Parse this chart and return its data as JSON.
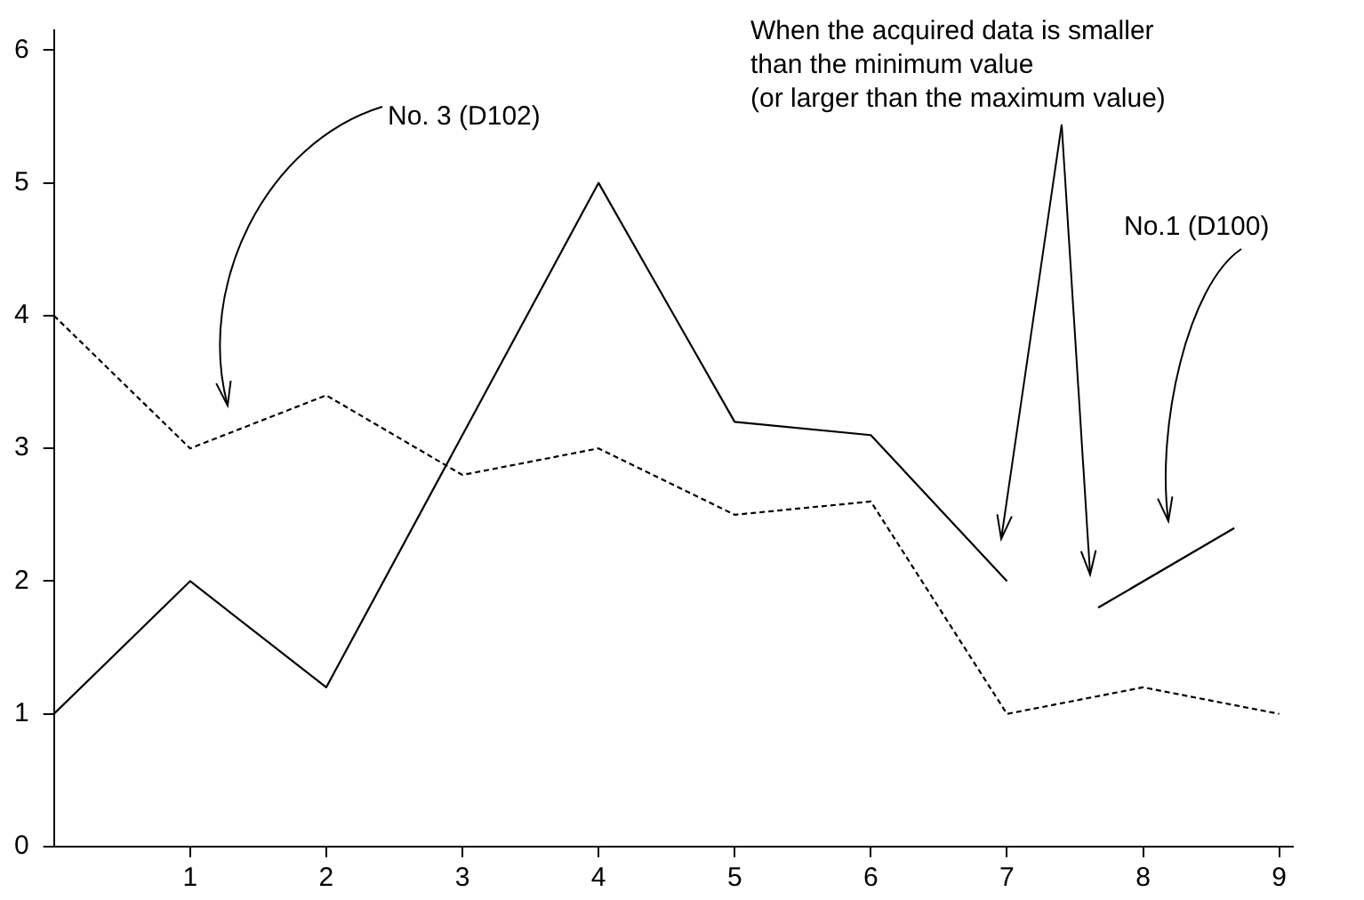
{
  "chart_data": {
    "type": "line",
    "xlim": [
      0,
      9.1
    ],
    "xticks": [
      1,
      2,
      3,
      4,
      5,
      6,
      7,
      8,
      9
    ],
    "ylim": [
      0,
      6.15
    ],
    "yticks": [
      0,
      1,
      2,
      3,
      4,
      5,
      6
    ],
    "grid": false,
    "legend": false,
    "marker": "none",
    "series": [
      {
        "name": "No.1 (D100)",
        "color": "#000000",
        "line_style": "solid",
        "x": [
          0,
          1,
          2,
          4,
          5,
          6,
          7,
          7.3,
          7.67,
          8.67
        ],
        "values": [
          1,
          2,
          1.2,
          5,
          3.2,
          3.1,
          2,
          null,
          1.8,
          2.4
        ]
      },
      {
        "name": "No. 3 (D102)",
        "color": "#000000",
        "line_style": "dashed",
        "x": [
          0,
          1,
          2,
          3,
          4,
          5,
          6,
          7,
          8,
          9
        ],
        "values": [
          4,
          3,
          3.4,
          2.8,
          3,
          2.5,
          2.6,
          1,
          1.2,
          1
        ]
      }
    ],
    "annotations": [
      "When the acquired data is smaller\nthan the minimum value\n(or larger than the maximum value)"
    ]
  }
}
